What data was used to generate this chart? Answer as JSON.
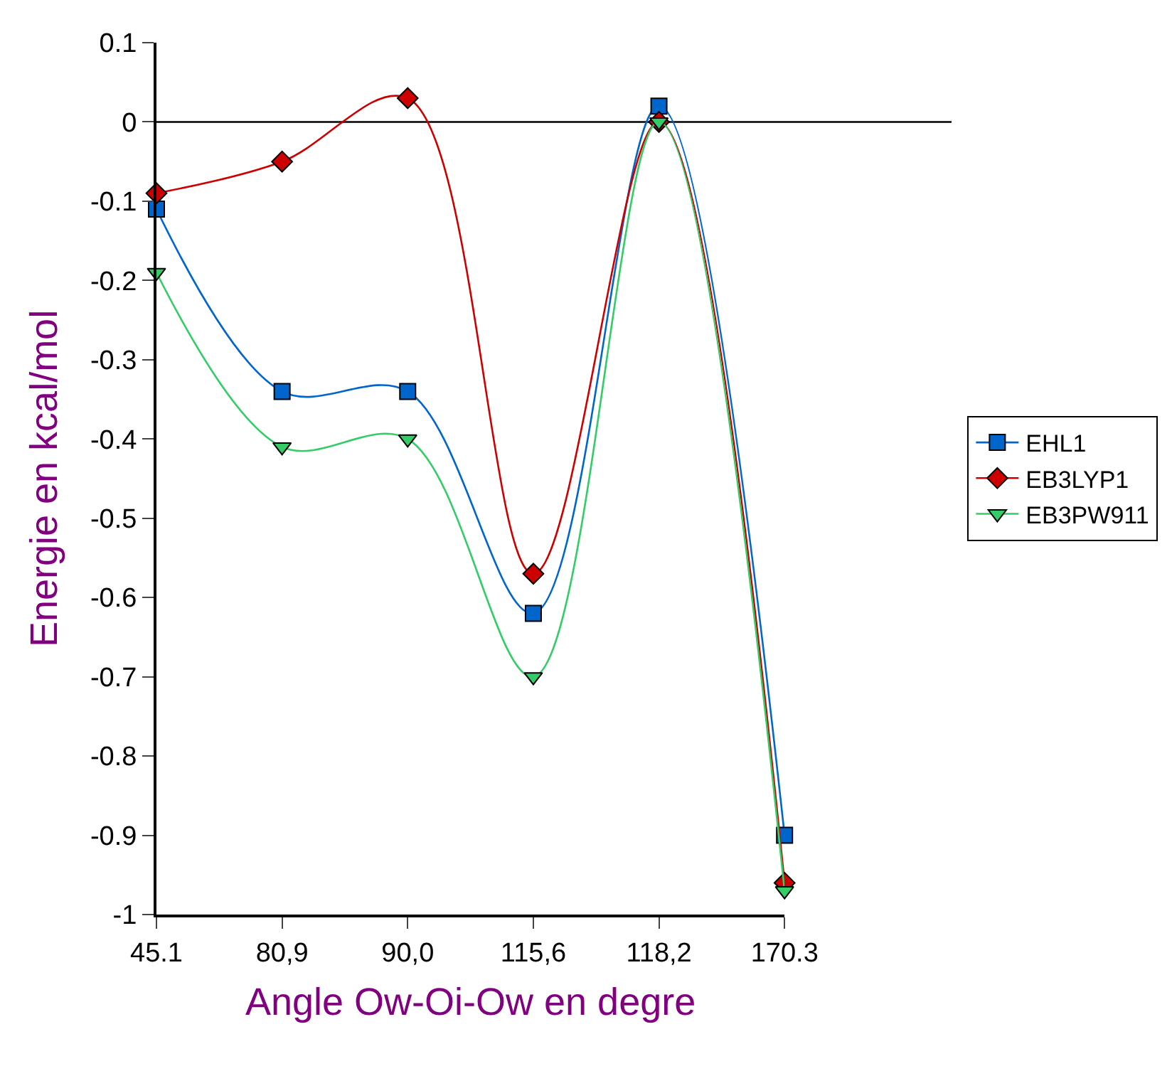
{
  "chart_data": {
    "type": "line",
    "xlabel": "Angle Ow-Oi-Ow en degre",
    "ylabel": "Energie en kcal/mol",
    "categories": [
      "45.1",
      "80,9",
      "90,0",
      "115,6",
      "118,2",
      "170.3"
    ],
    "series": [
      {
        "name": "EHL1",
        "color": "#0066cc",
        "marker": "square",
        "values": [
          -0.11,
          -0.34,
          -0.34,
          -0.62,
          0.02,
          -0.9
        ]
      },
      {
        "name": "EB3LYP1",
        "color": "#cc0000",
        "marker": "diamond",
        "values": [
          -0.09,
          -0.05,
          0.03,
          -0.57,
          0.0,
          -0.96
        ]
      },
      {
        "name": "EB3PW911",
        "color": "#33cc66",
        "marker": "triangle",
        "values": [
          -0.19,
          -0.41,
          -0.4,
          -0.7,
          0.0,
          -0.97
        ]
      }
    ],
    "ylim": [
      -1,
      0.1
    ],
    "yticks": [
      -1,
      -0.9,
      -0.8,
      -0.7,
      -0.6,
      -0.5,
      -0.4,
      -0.3,
      -0.2,
      -0.1,
      0,
      0.1
    ],
    "ref_lines": [
      {
        "axis": "y",
        "value": 0,
        "color": "#000000"
      }
    ],
    "line_style": "solid",
    "grid": false,
    "legend": "right"
  }
}
